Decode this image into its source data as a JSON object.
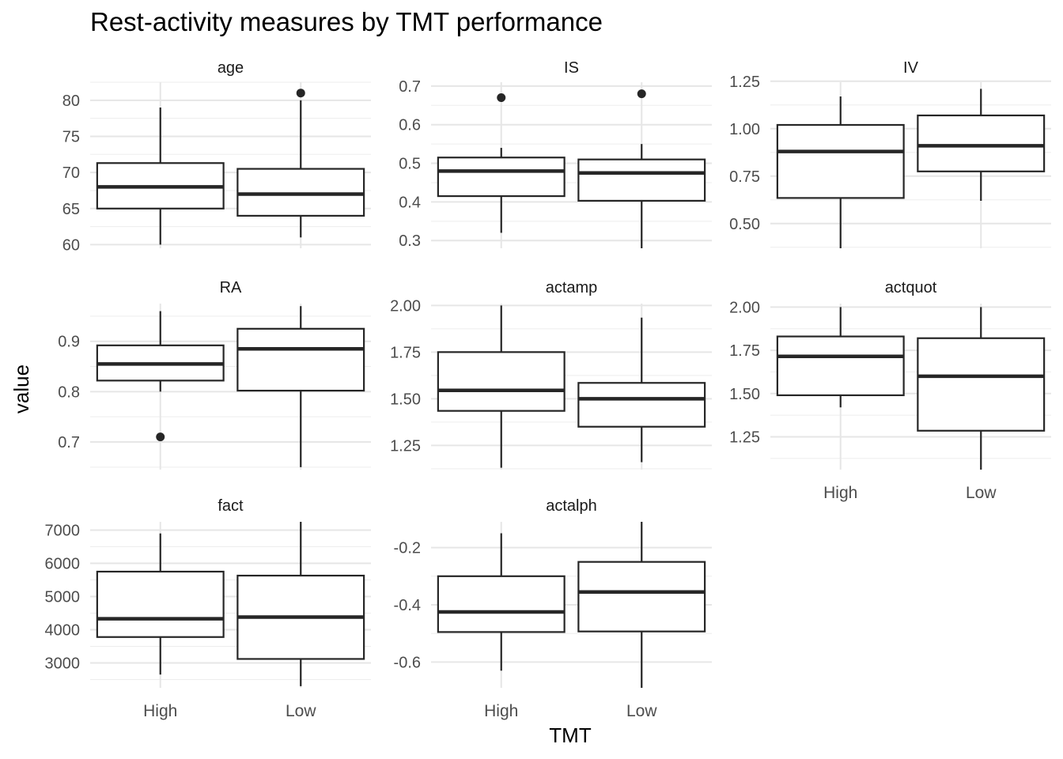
{
  "chart_data": {
    "type": "boxplot",
    "title": "Rest-activity measures by TMT performance",
    "xlabel": "TMT",
    "ylabel": "value",
    "categories": [
      "High",
      "Low"
    ],
    "grid": true,
    "facets": [
      {
        "name": "age",
        "ylim": [
          59.5,
          82.5
        ],
        "ticks": [
          60,
          65,
          70,
          75,
          80
        ],
        "tick_labels": [
          "60",
          "65",
          "70",
          "75",
          "80"
        ],
        "boxes": [
          {
            "group": "High",
            "min": 60,
            "q1": 65,
            "median": 68,
            "q3": 71.3,
            "max": 79,
            "outliers": []
          },
          {
            "group": "Low",
            "min": 61,
            "q1": 64,
            "median": 67,
            "q3": 70.5,
            "max": 80,
            "outliers": [
              81
            ]
          }
        ]
      },
      {
        "name": "IS",
        "ylim": [
          0.28,
          0.71
        ],
        "ticks": [
          0.3,
          0.4,
          0.5,
          0.6,
          0.7
        ],
        "tick_labels": [
          "0.3",
          "0.4",
          "0.5",
          "0.6",
          "0.7"
        ],
        "boxes": [
          {
            "group": "High",
            "min": 0.32,
            "q1": 0.415,
            "median": 0.48,
            "q3": 0.515,
            "max": 0.54,
            "outliers": [
              0.67
            ]
          },
          {
            "group": "Low",
            "min": 0.28,
            "q1": 0.403,
            "median": 0.475,
            "q3": 0.51,
            "max": 0.55,
            "outliers": [
              0.68
            ]
          }
        ]
      },
      {
        "name": "IV",
        "ylim": [
          0.37,
          1.245
        ],
        "ticks": [
          0.5,
          0.75,
          1.0,
          1.25
        ],
        "tick_labels": [
          "0.50",
          "0.75",
          "1.00",
          "1.25"
        ],
        "boxes": [
          {
            "group": "High",
            "min": 0.37,
            "q1": 0.635,
            "median": 0.88,
            "q3": 1.02,
            "max": 1.17,
            "outliers": []
          },
          {
            "group": "Low",
            "min": 0.62,
            "q1": 0.775,
            "median": 0.91,
            "q3": 1.07,
            "max": 1.21,
            "outliers": []
          }
        ]
      },
      {
        "name": "RA",
        "ylim": [
          0.645,
          0.975
        ],
        "ticks": [
          0.7,
          0.8,
          0.9
        ],
        "tick_labels": [
          "0.7",
          "0.8",
          "0.9"
        ],
        "boxes": [
          {
            "group": "High",
            "min": 0.8,
            "q1": 0.822,
            "median": 0.855,
            "q3": 0.892,
            "max": 0.96,
            "outliers": [
              0.71
            ]
          },
          {
            "group": "Low",
            "min": 0.65,
            "q1": 0.802,
            "median": 0.885,
            "q3": 0.925,
            "max": 0.97,
            "outliers": []
          }
        ]
      },
      {
        "name": "actamp",
        "ylim": [
          1.12,
          2.01
        ],
        "ticks": [
          1.25,
          1.5,
          1.75,
          2.0
        ],
        "tick_labels": [
          "1.25",
          "1.50",
          "1.75",
          "2.00"
        ],
        "boxes": [
          {
            "group": "High",
            "min": 1.13,
            "q1": 1.435,
            "median": 1.545,
            "q3": 1.75,
            "max": 2.0,
            "outliers": []
          },
          {
            "group": "Low",
            "min": 1.16,
            "q1": 1.35,
            "median": 1.5,
            "q3": 1.585,
            "max": 1.935,
            "outliers": []
          }
        ]
      },
      {
        "name": "actquot",
        "ylim": [
          1.06,
          2.02
        ],
        "ticks": [
          1.25,
          1.5,
          1.75,
          2.0
        ],
        "tick_labels": [
          "1.25",
          "1.50",
          "1.75",
          "2.00"
        ],
        "boxes": [
          {
            "group": "High",
            "min": 1.42,
            "q1": 1.49,
            "median": 1.715,
            "q3": 1.83,
            "max": 2.0,
            "outliers": []
          },
          {
            "group": "Low",
            "min": 1.06,
            "q1": 1.285,
            "median": 1.6,
            "q3": 1.82,
            "max": 2.0,
            "outliers": []
          }
        ]
      },
      {
        "name": "fact",
        "ylim": [
          2250,
          7250
        ],
        "ticks": [
          3000,
          4000,
          5000,
          6000,
          7000
        ],
        "tick_labels": [
          "3000",
          "4000",
          "5000",
          "6000",
          "7000"
        ],
        "boxes": [
          {
            "group": "High",
            "min": 2650,
            "q1": 3780,
            "median": 4330,
            "q3": 5750,
            "max": 6900,
            "outliers": []
          },
          {
            "group": "Low",
            "min": 2300,
            "q1": 3120,
            "median": 4380,
            "q3": 5630,
            "max": 7250,
            "outliers": []
          }
        ]
      },
      {
        "name": "actalph",
        "ylim": [
          -0.69,
          -0.11
        ],
        "ticks": [
          -0.6,
          -0.4,
          -0.2
        ],
        "tick_labels": [
          "-0.6",
          "-0.4",
          "-0.2"
        ],
        "boxes": [
          {
            "group": "High",
            "min": -0.63,
            "q1": -0.495,
            "median": -0.425,
            "q3": -0.3,
            "max": -0.15,
            "outliers": []
          },
          {
            "group": "Low",
            "min": -0.69,
            "q1": -0.493,
            "median": -0.355,
            "q3": -0.25,
            "max": -0.11,
            "outliers": []
          }
        ]
      }
    ]
  }
}
